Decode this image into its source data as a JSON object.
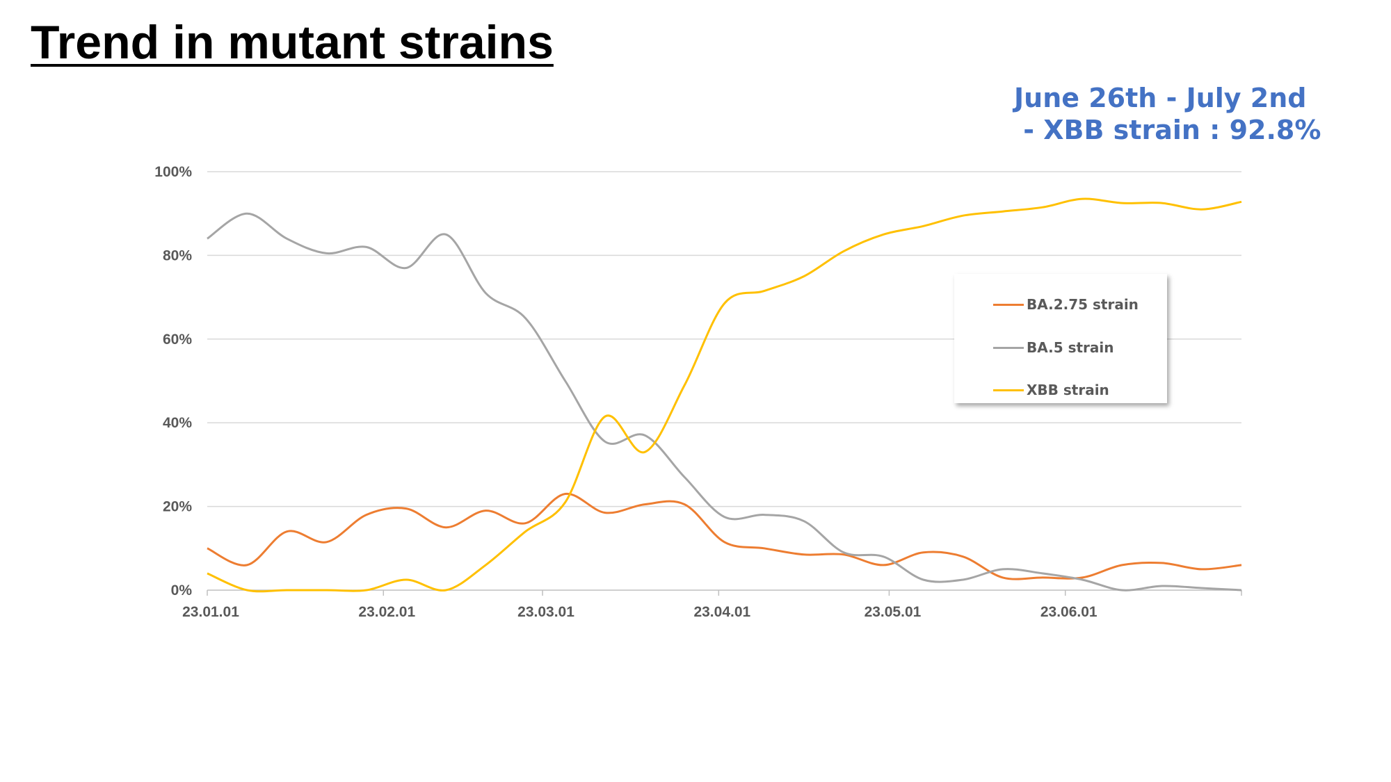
{
  "title": "Trend in mutant strains",
  "annotation": "June 26th - July 2nd\n - XBB strain : 92.8%",
  "colors": {
    "ba275": "#ed7d31",
    "ba5": "#a5a5a5",
    "xbb": "#ffc000",
    "annotation": "#4472c4",
    "grid": "#d9d9d9",
    "axis_text": "#595959"
  },
  "chart_data": {
    "type": "line",
    "title": "",
    "xlabel": "",
    "ylabel": "",
    "x_tick_labels": [
      "23.01.01",
      "23.02.01",
      "23.03.01",
      "23.04.01",
      "23.05.01",
      "23.06.01"
    ],
    "y_tick_labels": [
      "0%",
      "20%",
      "40%",
      "60%",
      "80%",
      "100%"
    ],
    "ylim": [
      0,
      100
    ],
    "grid": true,
    "legend_position": "right",
    "x": [
      "2023-01-01",
      "2023-01-08",
      "2023-01-15",
      "2023-01-22",
      "2023-01-29",
      "2023-02-05",
      "2023-02-12",
      "2023-02-19",
      "2023-02-26",
      "2023-03-05",
      "2023-03-12",
      "2023-03-19",
      "2023-03-26",
      "2023-04-02",
      "2023-04-09",
      "2023-04-16",
      "2023-04-23",
      "2023-04-30",
      "2023-05-07",
      "2023-05-14",
      "2023-05-21",
      "2023-05-28",
      "2023-06-04",
      "2023-06-11",
      "2023-06-18",
      "2023-06-25",
      "2023-07-02"
    ],
    "series": [
      {
        "name": "BA.2.75 strain",
        "values": [
          10,
          6,
          14,
          11.5,
          18,
          19.5,
          15,
          19,
          16,
          23,
          18.5,
          20.5,
          20.5,
          11.5,
          10,
          8.5,
          8.5,
          6,
          9,
          8,
          3,
          3,
          3,
          6,
          6.5,
          5,
          6
        ]
      },
      {
        "name": "BA.5 strain",
        "values": [
          84,
          90,
          84,
          80.5,
          82,
          77,
          85,
          71,
          65,
          50,
          35.5,
          37,
          27,
          17.5,
          18,
          16.5,
          9,
          8,
          2.5,
          2.5,
          5,
          4,
          2.5,
          0,
          1,
          0.5,
          0
        ]
      },
      {
        "name": "XBB strain",
        "values": [
          4,
          0,
          0,
          0,
          0,
          2.5,
          0,
          6,
          14,
          21,
          41.5,
          33,
          49,
          68.5,
          71.5,
          75,
          81,
          85,
          87,
          89.5,
          90.5,
          91.5,
          93.5,
          92.5,
          92.5,
          91,
          92.8
        ]
      }
    ]
  }
}
